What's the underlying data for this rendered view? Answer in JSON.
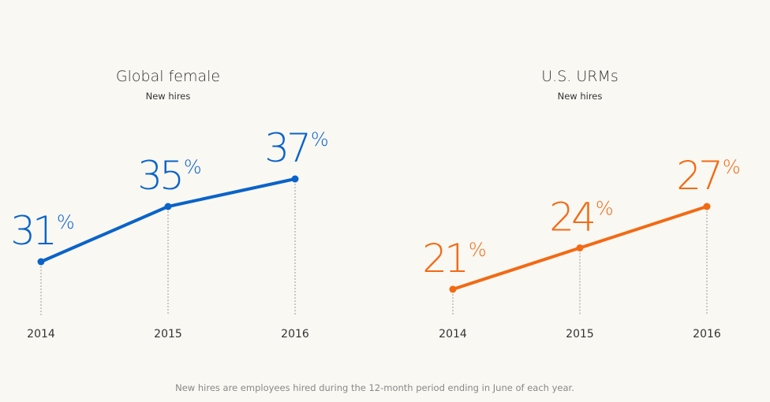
{
  "footnote": "New hires are employees hired during the 12-month period ending in June of each year.",
  "chart_data": [
    {
      "type": "line",
      "title": "Global female",
      "subtitle": "New hires",
      "color": "#0a63c9",
      "categories": [
        "2014",
        "2015",
        "2016"
      ],
      "values": [
        31,
        35,
        37
      ],
      "value_labels": [
        "31",
        "35",
        "37"
      ],
      "unit_label": "%",
      "ylim": [
        20,
        40
      ]
    },
    {
      "type": "line",
      "title": "U.S. URMs",
      "subtitle": "New hires",
      "color": "#f26a14",
      "categories": [
        "2014",
        "2015",
        "2016"
      ],
      "values": [
        21,
        24,
        27
      ],
      "value_labels": [
        "21",
        "24",
        "27"
      ],
      "unit_label": "%",
      "ylim": [
        15,
        30
      ]
    }
  ]
}
